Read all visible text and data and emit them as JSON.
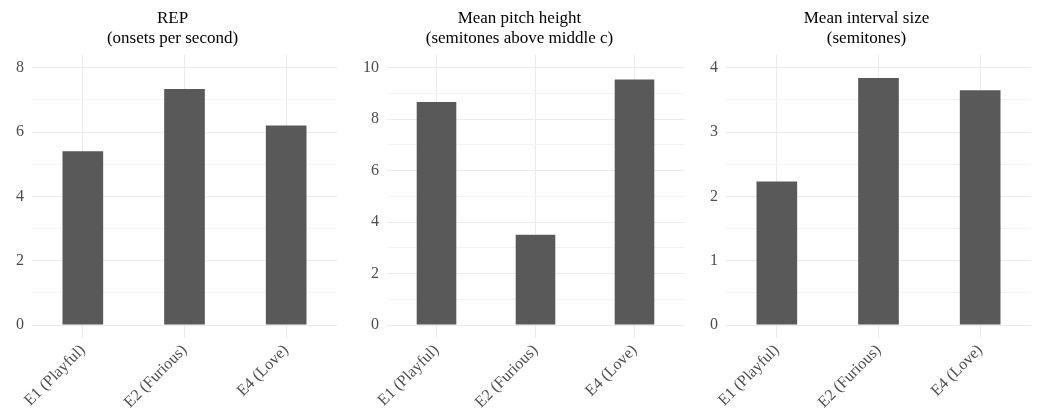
{
  "chart_data": [
    {
      "type": "bar",
      "title": "REP\n(onsets per second)",
      "categories": [
        "E1 (Playful)",
        "E2 (Furious)",
        "E4 (Love)"
      ],
      "values": [
        5.4,
        7.34,
        6.2
      ],
      "color": "#595959",
      "ylim": [
        -0.4,
        8.4
      ],
      "yticks": [
        0,
        {
          "value": 1,
          "label": null
        },
        2,
        {
          "value": 3,
          "label": null
        },
        4,
        {
          "value": 5,
          "label": null
        },
        6,
        {
          "value": 7,
          "label": null
        },
        8
      ],
      "grid": true
    },
    {
      "type": "bar",
      "title": "Mean pitch height\n(semitones above middle c)",
      "categories": [
        "E1 (Playful)",
        "E2 (Furious)",
        "E4 (Love)"
      ],
      "values": [
        8.67,
        3.51,
        9.54
      ],
      "color": "#595959",
      "ylim": [
        -0.5,
        10.5
      ],
      "yticks": [
        0,
        {
          "value": 1,
          "label": null
        },
        2,
        {
          "value": 3,
          "label": null
        },
        4,
        {
          "value": 5,
          "label": null
        },
        6,
        {
          "value": 7,
          "label": null
        },
        8,
        {
          "value": 9,
          "label": null
        },
        10
      ],
      "grid": true
    },
    {
      "type": "bar",
      "title": "Mean interval size\n(semitones)",
      "categories": [
        "E1 (Playful)",
        "E2 (Furious)",
        "E4 (Love)"
      ],
      "values": [
        2.23,
        3.84,
        3.65
      ],
      "color": "#595959",
      "ylim": [
        -0.2,
        4.2
      ],
      "yticks": [
        0,
        {
          "value": 0.5,
          "label": null
        },
        1,
        {
          "value": 1.5,
          "label": null
        },
        2,
        {
          "value": 2.5,
          "label": null
        },
        3,
        {
          "value": 3.5,
          "label": null
        },
        4
      ],
      "grid": true
    }
  ]
}
